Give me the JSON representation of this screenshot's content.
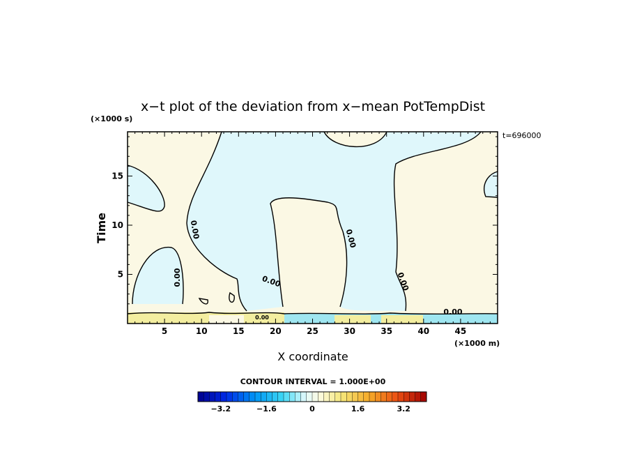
{
  "chart_data": {
    "type": "contour",
    "title": "x−t plot of the deviation from x−mean PotTempDist",
    "xlabel": "X coordinate",
    "ylabel": "Time",
    "x_unit_label": "(×1000 m)",
    "y_unit_label": "(×1000 s)",
    "time_stamp": "t=696000",
    "xlim": [
      0,
      50
    ],
    "ylim": [
      0,
      19.5
    ],
    "x_ticks": [
      5,
      10,
      15,
      20,
      25,
      30,
      35,
      40,
      45
    ],
    "y_ticks": [
      5,
      10,
      15
    ],
    "contour_interval_text": "CONTOUR INTERVAL = 1.000E+00",
    "contour_labels": [
      "0.00",
      "0.00",
      "0.00",
      "0.00",
      "0.00",
      "0.00",
      "0.00"
    ],
    "colorbar": {
      "min": -4.0,
      "max": 4.0,
      "n_colors": 40,
      "ticks": [
        -3.2,
        -1.6,
        0,
        1.6,
        3.2
      ],
      "tick_labels": [
        "−3.2",
        "−1.6",
        "0",
        "1.6",
        "3.2"
      ]
    },
    "regions": [
      {
        "name": "negative",
        "fill": "#dff7fb",
        "contour_value": -0.4
      },
      {
        "name": "positive",
        "fill": "#fbf8e4",
        "contour_value": 0.4
      },
      {
        "name": "strong-positive",
        "fill": "#f3eea0",
        "contour_value": 1.2
      },
      {
        "name": "strong-negative",
        "fill": "#9fe6f0",
        "contour_value": -1.2
      }
    ]
  }
}
